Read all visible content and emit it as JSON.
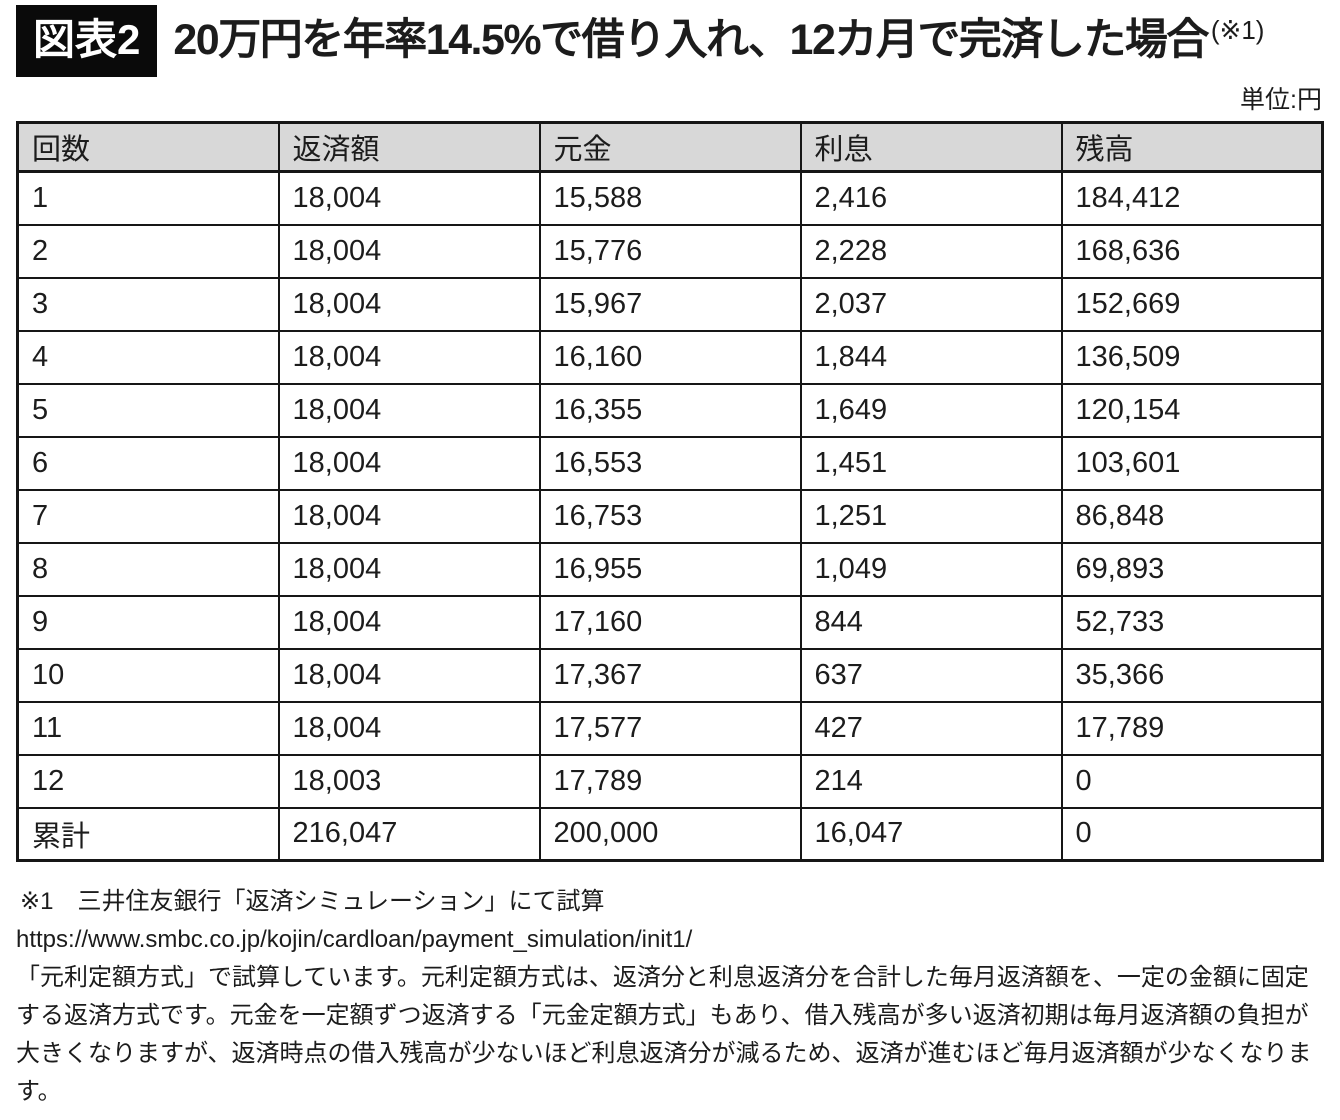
{
  "figure": {
    "badge": "図表2",
    "title": "20万円を年率14.5%で借り入れ、12カ月で完済した場合",
    "title_note": "(※1)",
    "unit_label": "単位:円"
  },
  "table": {
    "columns": [
      "回数",
      "返済額",
      "元金",
      "利息",
      "残高"
    ],
    "rows": [
      [
        "1",
        "18,004",
        "15,588",
        "2,416",
        "184,412"
      ],
      [
        "2",
        "18,004",
        "15,776",
        "2,228",
        "168,636"
      ],
      [
        "3",
        "18,004",
        "15,967",
        "2,037",
        "152,669"
      ],
      [
        "4",
        "18,004",
        "16,160",
        "1,844",
        "136,509"
      ],
      [
        "5",
        "18,004",
        "16,355",
        "1,649",
        "120,154"
      ],
      [
        "6",
        "18,004",
        "16,553",
        "1,451",
        "103,601"
      ],
      [
        "7",
        "18,004",
        "16,753",
        "1,251",
        "86,848"
      ],
      [
        "8",
        "18,004",
        "16,955",
        "1,049",
        "69,893"
      ],
      [
        "9",
        "18,004",
        "17,160",
        "844",
        "52,733"
      ],
      [
        "10",
        "18,004",
        "17,367",
        "637",
        "35,366"
      ],
      [
        "11",
        "18,004",
        "17,577",
        "427",
        "17,789"
      ],
      [
        "12",
        "18,003",
        "17,789",
        "214",
        "0"
      ],
      [
        "累計",
        "216,047",
        "200,000",
        "16,047",
        "0"
      ]
    ]
  },
  "footnotes": {
    "source": "※1　三井住友銀行「返済シミュレーション」にて試算",
    "url": "https://www.smbc.co.jp/kojin/cardloan/payment_simulation/init1/",
    "description": "「元利定額方式」で試算しています。元利定額方式は、返済分と利息返済分を合計した毎月返済額を、一定の金額に固定する返済方式です。元金を一定額ずつ返済する「元金定額方式」もあり、借入残高が多い返済初期は毎月返済額の負担が大きくなりますが、返済時点の借入残高が少ないほど利息返済分が減るため、返済が進むほど毎月返済額が少なくなります。"
  },
  "colors": {
    "header_bg": "#d8d8d8",
    "border": "#161616",
    "badge_bg": "#0a0a0a",
    "badge_text": "#ffffff",
    "text": "#1c1c1c"
  }
}
